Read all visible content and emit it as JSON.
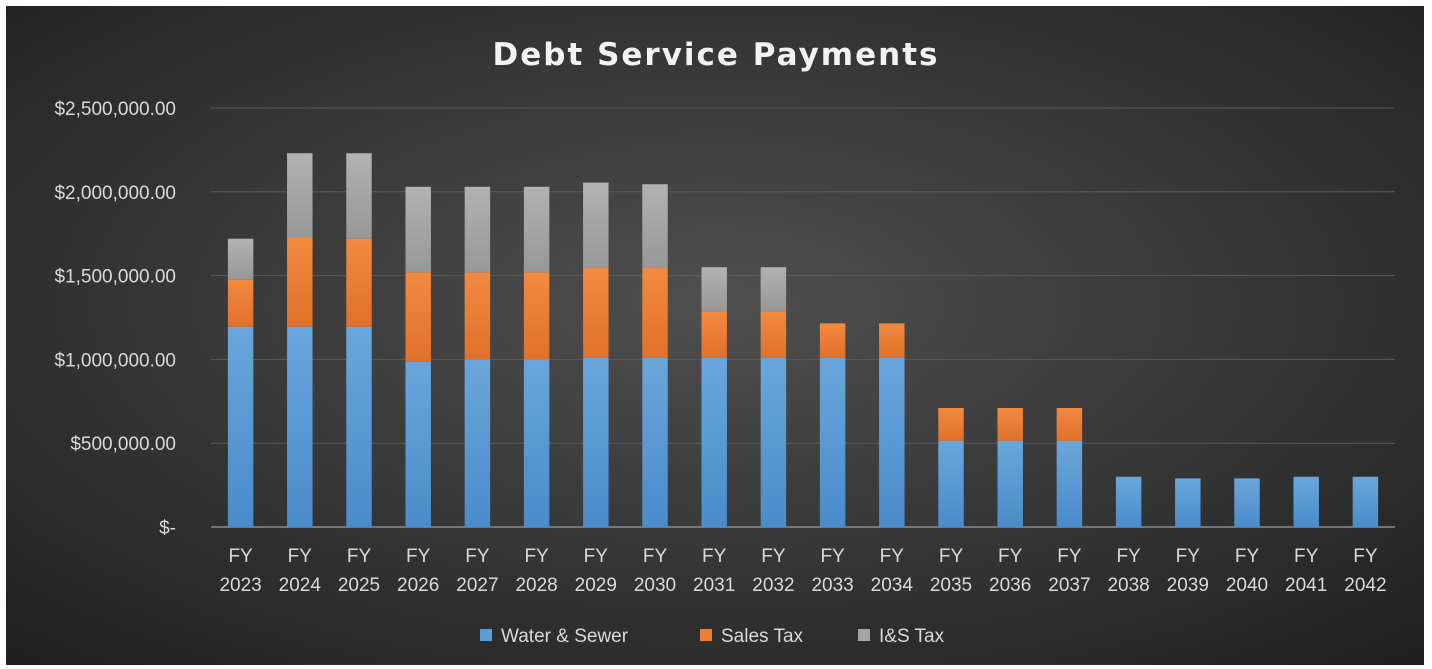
{
  "chart_data": {
    "type": "bar",
    "stacked": true,
    "title": "Debt Service Payments",
    "categories": [
      [
        "FY",
        "2023"
      ],
      [
        "FY",
        "2024"
      ],
      [
        "FY",
        "2025"
      ],
      [
        "FY",
        "2026"
      ],
      [
        "FY",
        "2027"
      ],
      [
        "FY",
        "2028"
      ],
      [
        "FY",
        "2029"
      ],
      [
        "FY",
        "2030"
      ],
      [
        "FY",
        "2031"
      ],
      [
        "FY",
        "2032"
      ],
      [
        "FY",
        "2033"
      ],
      [
        "FY",
        "2034"
      ],
      [
        "FY",
        "2035"
      ],
      [
        "FY",
        "2036"
      ],
      [
        "FY",
        "2037"
      ],
      [
        "FY",
        "2038"
      ],
      [
        "FY",
        "2039"
      ],
      [
        "FY",
        "2040"
      ],
      [
        "FY",
        "2041"
      ],
      [
        "FY",
        "2042"
      ]
    ],
    "series": [
      {
        "name": "Water & Sewer",
        "color": "#5b9bd5",
        "values": [
          1195000,
          1195000,
          1195000,
          985000,
          1000000,
          1000000,
          1010000,
          1010000,
          1010000,
          1010000,
          1010000,
          1010000,
          515000,
          515000,
          515000,
          300000,
          290000,
          290000,
          300000,
          300000
        ]
      },
      {
        "name": "Sales Tax",
        "color": "#ed7d31",
        "values": [
          280000,
          535000,
          525000,
          535000,
          520000,
          520000,
          535000,
          535000,
          275000,
          275000,
          205000,
          205000,
          195000,
          195000,
          195000,
          0,
          0,
          0,
          0,
          0
        ]
      },
      {
        "name": "I&S Tax",
        "color": "#a5a5a5",
        "values": [
          245000,
          500000,
          510000,
          510000,
          510000,
          510000,
          510000,
          500000,
          265000,
          265000,
          0,
          0,
          0,
          0,
          0,
          0,
          0,
          0,
          0,
          0
        ]
      }
    ],
    "yticks": [
      {
        "value": 0,
        "label": "$-"
      },
      {
        "value": 500000,
        "label": "$500,000.00"
      },
      {
        "value": 1000000,
        "label": "$1,000,000.00"
      },
      {
        "value": 1500000,
        "label": "$1,500,000.00"
      },
      {
        "value": 2000000,
        "label": "$2,000,000.00"
      },
      {
        "value": 2500000,
        "label": "$2,500,000.00"
      }
    ],
    "ylim": [
      0,
      2500000
    ],
    "grid": true,
    "legend_position": "bottom"
  }
}
